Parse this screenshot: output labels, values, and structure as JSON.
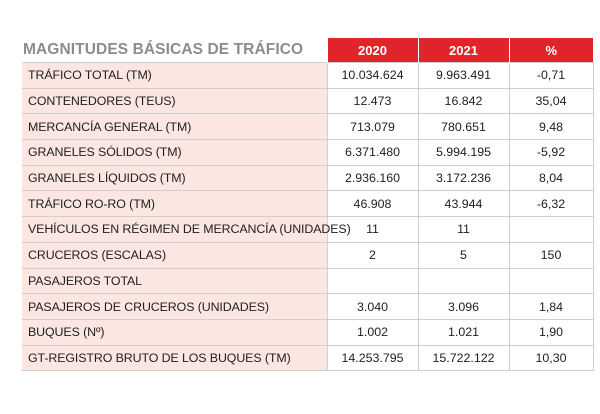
{
  "table": {
    "title": "MAGNITUDES BÁSICAS DE TRÁFICO",
    "columns": [
      "2020",
      "2021",
      "%"
    ],
    "rows": [
      {
        "label": "TRÁFICO TOTAL (TM)",
        "y2020": "10.034.624",
        "y2021": "9.963.491",
        "pct": "-0,71"
      },
      {
        "label": "CONTENEDORES (TEUS)",
        "y2020": "12.473",
        "y2021": "16.842",
        "pct": "35,04"
      },
      {
        "label": "MERCANCÍA GENERAL (TM)",
        "y2020": "713.079",
        "y2021": "780.651",
        "pct": "9,48"
      },
      {
        "label": "GRANELES SÓLIDOS (TM)",
        "y2020": "6.371.480",
        "y2021": "5.994.195",
        "pct": "-5,92"
      },
      {
        "label": "GRANELES LÍQUIDOS (TM)",
        "y2020": "2.936.160",
        "y2021": "3.172.236",
        "pct": "8,04"
      },
      {
        "label": "TRÁFICO RO-RO (TM)",
        "y2020": "46.908",
        "y2021": "43.944",
        "pct": "-6,32"
      },
      {
        "label": "VEHÍCULOS EN RÉGIMEN DE MERCANCÍA (UNIDADES)",
        "y2020": "11",
        "y2021": "11",
        "pct": ""
      },
      {
        "label": "CRUCEROS (ESCALAS)",
        "y2020": "2",
        "y2021": "5",
        "pct": "150"
      },
      {
        "label": "PASAJEROS TOTAL",
        "y2020": "",
        "y2021": "",
        "pct": ""
      },
      {
        "label": "PASAJEROS DE CRUCEROS (UNIDADES)",
        "y2020": "3.040",
        "y2021": "3.096",
        "pct": "1,84"
      },
      {
        "label": "BUQUES (Nº)",
        "y2020": "1.002",
        "y2021": "1.021",
        "pct": "1,90"
      },
      {
        "label": "GT-REGISTRO BRUTO DE LOS BUQUES (TM)",
        "y2020": "14.253.795",
        "y2021": "15.722.122",
        "pct": "10,30"
      }
    ]
  },
  "colors": {
    "header_red": "#e0242b",
    "label_bg": "#fbe6e2",
    "title_gray": "#8c8c8c"
  }
}
